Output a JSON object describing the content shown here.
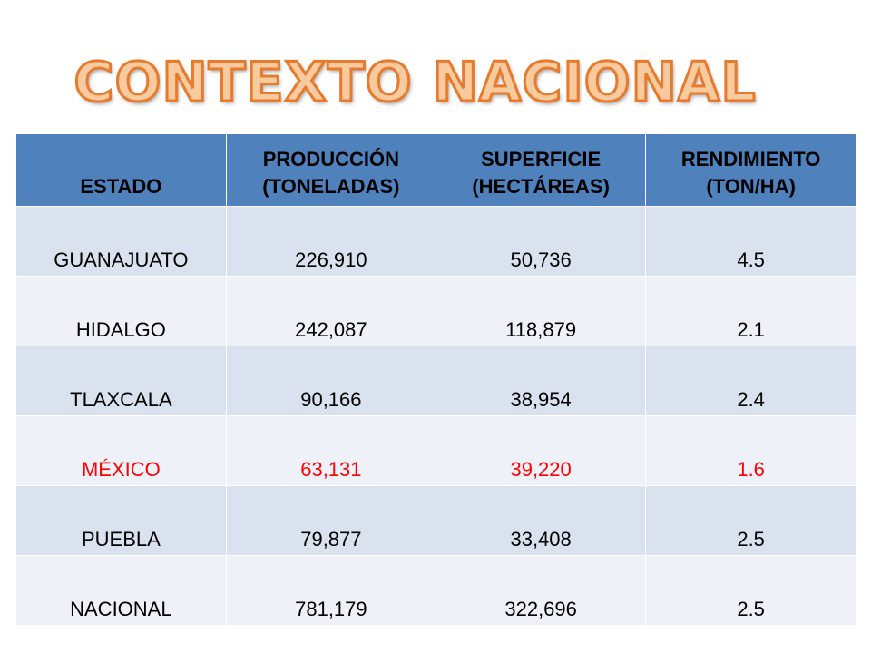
{
  "title": "CONTEXTO NACIONAL",
  "table": {
    "headers": [
      [
        "ESTADO"
      ],
      [
        "PRODUCCIÓN",
        "(TONELADAS)"
      ],
      [
        "SUPERFICIE",
        "(HECTÁREAS)"
      ],
      [
        "RENDIMIENTO",
        "(TON/HA)"
      ]
    ],
    "rows": [
      {
        "estado": "GUANAJUATO",
        "produccion": "226,910",
        "superficie": "50,736",
        "rendimiento": "4.5"
      },
      {
        "estado": "HIDALGO",
        "produccion": "242,087",
        "superficie": "118,879",
        "rendimiento": "2.1"
      },
      {
        "estado": "TLAXCALA",
        "produccion": "90,166",
        "superficie": "38,954",
        "rendimiento": "2.4"
      },
      {
        "estado": "MÉXICO",
        "produccion": "63,131",
        "superficie": "39,220",
        "rendimiento": "1.6"
      },
      {
        "estado": "PUEBLA",
        "produccion": "79,877",
        "superficie": "33,408",
        "rendimiento": "2.5"
      },
      {
        "estado": "NACIONAL",
        "produccion": "781,179",
        "superficie": "322,696",
        "rendimiento": "2.5"
      }
    ]
  },
  "colors": {
    "title_fill": "#f7caa0",
    "title_outline": "#e87a2c",
    "header_bg": "#4f81bd",
    "row_odd_bg": "#dbe2ef",
    "row_even_bg": "#eef1f7",
    "highlight_text": "#ff0000"
  }
}
